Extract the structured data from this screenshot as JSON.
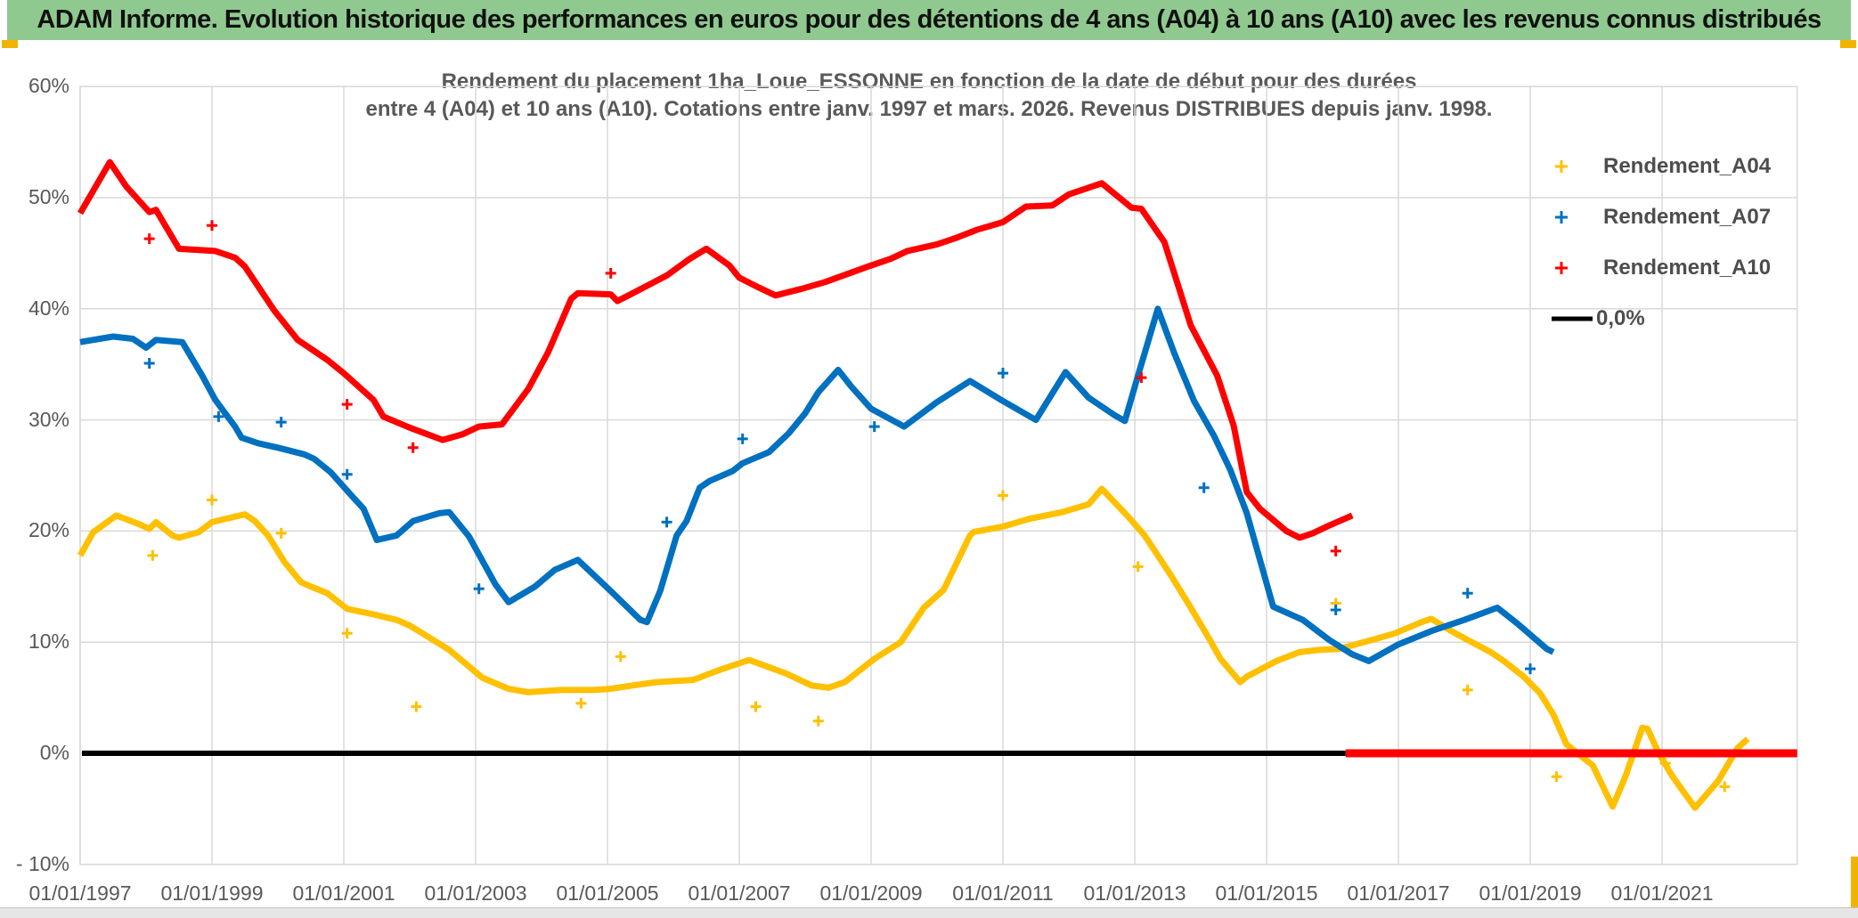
{
  "banner": {
    "title": "ADAM Informe. Evolution historique des performances en euros pour des détentions de 4 ans (A04) à 10 ans (A10) avec les revenus connus distribués"
  },
  "chart": {
    "title_line1": "Rendement du placement 1ha_Loue_ESSONNE en fonction de la date de début pour des durées",
    "title_line2": "entre 4 (A04) et 10 ans (A10). Cotations entre janv. 1997 et mars. 2026. Revenus DISTRIBUES depuis janv. 1998."
  },
  "colors": {
    "banner_green": "#8fc98f",
    "gold_accent": "#f0b400",
    "grid": "#d9d9d9",
    "axis_text": "#595959",
    "title_text": "#595959",
    "legend_text": "#4d4d4d",
    "series_a04": "#ffc000",
    "series_a07": "#0070c0",
    "series_a10": "#ff0000",
    "zero_line": "#000000"
  },
  "legend": {
    "items": [
      {
        "label": "Rendement_A04",
        "marker": "plus",
        "color": "#ffc000"
      },
      {
        "label": "Rendement_A07",
        "marker": "plus",
        "color": "#0070c0"
      },
      {
        "label": "Rendement_A10",
        "marker": "plus",
        "color": "#ff0000"
      },
      {
        "label": "0,0%",
        "marker": "line",
        "color": "#000000"
      }
    ]
  },
  "chart_data": {
    "type": "line",
    "x_unit": "decimal_year_start_date",
    "y_unit": "percent",
    "xlim": [
      1997.0,
      2023.05
    ],
    "ylim": [
      -10,
      60
    ],
    "grid": true,
    "legend_position": "right",
    "y_ticks": [
      {
        "label": "60%",
        "value": 60
      },
      {
        "label": "50%",
        "value": 50
      },
      {
        "label": "40%",
        "value": 40
      },
      {
        "label": "30%",
        "value": 30
      },
      {
        "label": "20%",
        "value": 20
      },
      {
        "label": "10%",
        "value": 10
      },
      {
        "label": "0%",
        "value": 0
      },
      {
        "label": "- 10%",
        "value": -10
      }
    ],
    "x_ticks": [
      {
        "label": "01/01/1997",
        "value": 1997
      },
      {
        "label": "01/01/1999",
        "value": 1999
      },
      {
        "label": "01/01/2001",
        "value": 2001
      },
      {
        "label": "01/01/2003",
        "value": 2003
      },
      {
        "label": "01/01/2005",
        "value": 2005
      },
      {
        "label": "01/01/2007",
        "value": 2007
      },
      {
        "label": "01/01/2009",
        "value": 2009
      },
      {
        "label": "01/01/2011",
        "value": 2011
      },
      {
        "label": "01/01/2013",
        "value": 2013
      },
      {
        "label": "01/01/2015",
        "value": 2015
      },
      {
        "label": "01/01/2017",
        "value": 2017
      },
      {
        "label": "01/01/2019",
        "value": 2019
      },
      {
        "label": "01/01/2021",
        "value": 2021
      }
    ],
    "zero_line": {
      "color": "#000000",
      "from": 1997.0,
      "to": 2016.2,
      "value": 0
    },
    "series": [
      {
        "name": "Rendement_A04",
        "color": "#ffc000",
        "width": 7,
        "points": [
          [
            1997.0,
            17.8
          ],
          [
            1997.2,
            19.9
          ],
          [
            1997.55,
            21.4
          ],
          [
            1997.9,
            20.6
          ],
          [
            1998.05,
            20.2
          ],
          [
            1998.15,
            20.8
          ],
          [
            1998.4,
            19.6
          ],
          [
            1998.5,
            19.4
          ],
          [
            1998.8,
            19.9
          ],
          [
            1999.0,
            20.8
          ],
          [
            1999.35,
            21.3
          ],
          [
            1999.5,
            21.5
          ],
          [
            1999.65,
            20.9
          ],
          [
            1999.85,
            19.6
          ],
          [
            2000.1,
            17.2
          ],
          [
            2000.35,
            15.4
          ],
          [
            2000.5,
            15.0
          ],
          [
            2000.75,
            14.4
          ],
          [
            2001.05,
            13.0
          ],
          [
            2001.45,
            12.5
          ],
          [
            2001.8,
            12.0
          ],
          [
            2002.0,
            11.5
          ],
          [
            2002.3,
            10.4
          ],
          [
            2002.6,
            9.3
          ],
          [
            2003.1,
            6.8
          ],
          [
            2003.5,
            5.8
          ],
          [
            2003.8,
            5.5
          ],
          [
            2004.3,
            5.7
          ],
          [
            2004.8,
            5.7
          ],
          [
            2005.05,
            5.8
          ],
          [
            2005.5,
            6.2
          ],
          [
            2005.75,
            6.4
          ],
          [
            2006.3,
            6.6
          ],
          [
            2006.7,
            7.5
          ],
          [
            2006.95,
            8.0
          ],
          [
            2007.15,
            8.4
          ],
          [
            2007.7,
            7.2
          ],
          [
            2008.1,
            6.1
          ],
          [
            2008.35,
            5.9
          ],
          [
            2008.6,
            6.4
          ],
          [
            2009.05,
            8.5
          ],
          [
            2009.45,
            10.0
          ],
          [
            2009.8,
            13.1
          ],
          [
            2010.1,
            14.7
          ],
          [
            2010.5,
            19.6
          ],
          [
            2010.55,
            19.9
          ],
          [
            2011.0,
            20.4
          ],
          [
            2011.4,
            21.1
          ],
          [
            2011.9,
            21.7
          ],
          [
            2012.3,
            22.4
          ],
          [
            2012.5,
            23.8
          ],
          [
            2012.9,
            21.3
          ],
          [
            2013.15,
            19.6
          ],
          [
            2013.55,
            16.0
          ],
          [
            2013.85,
            13.1
          ],
          [
            2014.15,
            10.1
          ],
          [
            2014.3,
            8.5
          ],
          [
            2014.6,
            6.4
          ],
          [
            2014.7,
            6.9
          ],
          [
            2015.15,
            8.3
          ],
          [
            2015.5,
            9.1
          ],
          [
            2015.8,
            9.3
          ],
          [
            2016.1,
            9.4
          ],
          [
            2016.6,
            10.2
          ],
          [
            2016.95,
            10.8
          ],
          [
            2017.35,
            11.8
          ],
          [
            2017.5,
            12.1
          ],
          [
            2017.8,
            11.0
          ],
          [
            2018.05,
            10.2
          ],
          [
            2018.4,
            9.1
          ],
          [
            2018.6,
            8.3
          ],
          [
            2018.9,
            6.9
          ],
          [
            2019.15,
            5.4
          ],
          [
            2019.35,
            3.5
          ],
          [
            2019.55,
            0.8
          ],
          [
            2019.95,
            -1.1
          ],
          [
            2020.25,
            -4.8
          ],
          [
            2020.45,
            -2.0
          ],
          [
            2020.7,
            2.3
          ],
          [
            2020.78,
            2.2
          ],
          [
            2020.95,
            0.0
          ],
          [
            2021.15,
            -2.0
          ],
          [
            2021.5,
            -4.9
          ],
          [
            2021.85,
            -2.5
          ],
          [
            2022.15,
            0.5
          ],
          [
            2022.3,
            1.3
          ]
        ],
        "outliers": [
          [
            1998.1,
            17.8
          ],
          [
            1999.0,
            22.8
          ],
          [
            2000.05,
            19.8
          ],
          [
            2001.05,
            10.8
          ],
          [
            2002.1,
            4.2
          ],
          [
            2004.6,
            4.5
          ],
          [
            2005.2,
            8.7
          ],
          [
            2007.25,
            4.2
          ],
          [
            2008.2,
            2.9
          ],
          [
            2011.0,
            23.2
          ],
          [
            2013.05,
            16.8
          ],
          [
            2016.05,
            13.5
          ],
          [
            2018.05,
            5.7
          ],
          [
            2019.4,
            -2.1
          ],
          [
            2021.05,
            -0.9
          ],
          [
            2021.95,
            -3.0
          ]
        ]
      },
      {
        "name": "Rendement_A07",
        "color": "#0070c0",
        "width": 7,
        "points": [
          [
            1997.0,
            37.0
          ],
          [
            1997.5,
            37.5
          ],
          [
            1997.8,
            37.3
          ],
          [
            1998.0,
            36.5
          ],
          [
            1998.15,
            37.2
          ],
          [
            1998.55,
            37.0
          ],
          [
            1998.85,
            34.0
          ],
          [
            1999.05,
            31.8
          ],
          [
            1999.35,
            29.4
          ],
          [
            1999.45,
            28.4
          ],
          [
            1999.7,
            27.9
          ],
          [
            2000.0,
            27.5
          ],
          [
            2000.4,
            26.9
          ],
          [
            2000.55,
            26.5
          ],
          [
            2000.8,
            25.3
          ],
          [
            2001.1,
            23.3
          ],
          [
            2001.3,
            22.0
          ],
          [
            2001.5,
            19.2
          ],
          [
            2001.8,
            19.6
          ],
          [
            2002.05,
            20.9
          ],
          [
            2002.45,
            21.6
          ],
          [
            2002.6,
            21.7
          ],
          [
            2002.9,
            19.5
          ],
          [
            2003.3,
            15.2
          ],
          [
            2003.5,
            13.6
          ],
          [
            2003.9,
            15.0
          ],
          [
            2004.2,
            16.5
          ],
          [
            2004.55,
            17.4
          ],
          [
            2005.05,
            14.6
          ],
          [
            2005.5,
            12.0
          ],
          [
            2005.6,
            11.8
          ],
          [
            2005.8,
            14.6
          ],
          [
            2006.05,
            19.6
          ],
          [
            2006.2,
            20.9
          ],
          [
            2006.4,
            23.9
          ],
          [
            2006.55,
            24.5
          ],
          [
            2006.9,
            25.4
          ],
          [
            2007.05,
            26.1
          ],
          [
            2007.45,
            27.1
          ],
          [
            2007.75,
            28.8
          ],
          [
            2008.0,
            30.6
          ],
          [
            2008.2,
            32.5
          ],
          [
            2008.5,
            34.5
          ],
          [
            2008.7,
            33.0
          ],
          [
            2009.0,
            31.0
          ],
          [
            2009.5,
            29.4
          ],
          [
            2010.0,
            31.6
          ],
          [
            2010.5,
            33.5
          ],
          [
            2011.0,
            31.7
          ],
          [
            2011.5,
            30.0
          ],
          [
            2011.95,
            34.3
          ],
          [
            2012.3,
            32.0
          ],
          [
            2012.7,
            30.4
          ],
          [
            2012.85,
            29.9
          ],
          [
            2013.05,
            34.0
          ],
          [
            2013.35,
            40.0
          ],
          [
            2013.6,
            36.0
          ],
          [
            2013.9,
            31.7
          ],
          [
            2014.2,
            28.6
          ],
          [
            2014.45,
            25.5
          ],
          [
            2014.7,
            21.6
          ],
          [
            2015.1,
            13.2
          ],
          [
            2015.55,
            12.0
          ],
          [
            2015.95,
            10.2
          ],
          [
            2016.3,
            8.9
          ],
          [
            2016.55,
            8.3
          ],
          [
            2017.0,
            9.8
          ],
          [
            2017.5,
            11.0
          ],
          [
            2018.0,
            12.0
          ],
          [
            2018.5,
            13.1
          ],
          [
            2018.8,
            11.7
          ],
          [
            2019.25,
            9.4
          ],
          [
            2019.35,
            9.1
          ]
        ],
        "outliers": [
          [
            1998.05,
            35.1
          ],
          [
            1999.1,
            30.3
          ],
          [
            2000.05,
            29.8
          ],
          [
            2001.05,
            25.1
          ],
          [
            2003.05,
            14.8
          ],
          [
            2005.9,
            20.8
          ],
          [
            2007.05,
            28.3
          ],
          [
            2009.05,
            29.4
          ],
          [
            2011.0,
            34.2
          ],
          [
            2014.05,
            23.9
          ],
          [
            2016.05,
            12.9
          ],
          [
            2018.05,
            14.4
          ],
          [
            2019.0,
            7.6
          ]
        ]
      },
      {
        "name": "Rendement_A10",
        "color": "#ff0000",
        "width": 7,
        "points": [
          [
            1997.0,
            48.6
          ],
          [
            1997.45,
            53.2
          ],
          [
            1997.7,
            51.0
          ],
          [
            1998.05,
            48.7
          ],
          [
            1998.15,
            48.9
          ],
          [
            1998.5,
            45.4
          ],
          [
            1999.05,
            45.2
          ],
          [
            1999.35,
            44.6
          ],
          [
            1999.5,
            43.8
          ],
          [
            1999.95,
            39.8
          ],
          [
            2000.3,
            37.2
          ],
          [
            2000.75,
            35.4
          ],
          [
            2001.0,
            34.2
          ],
          [
            2001.45,
            31.8
          ],
          [
            2001.6,
            30.3
          ],
          [
            2002.0,
            29.3
          ],
          [
            2002.5,
            28.2
          ],
          [
            2002.8,
            28.7
          ],
          [
            2003.05,
            29.4
          ],
          [
            2003.4,
            29.6
          ],
          [
            2003.8,
            32.8
          ],
          [
            2004.1,
            36.1
          ],
          [
            2004.45,
            40.9
          ],
          [
            2004.55,
            41.4
          ],
          [
            2005.05,
            41.3
          ],
          [
            2005.15,
            40.7
          ],
          [
            2005.35,
            41.3
          ],
          [
            2005.9,
            43.0
          ],
          [
            2006.25,
            44.5
          ],
          [
            2006.5,
            45.4
          ],
          [
            2006.85,
            43.9
          ],
          [
            2007.0,
            42.8
          ],
          [
            2007.3,
            41.9
          ],
          [
            2007.55,
            41.2
          ],
          [
            2007.95,
            41.8
          ],
          [
            2008.3,
            42.4
          ],
          [
            2008.95,
            43.8
          ],
          [
            2009.3,
            44.5
          ],
          [
            2009.55,
            45.2
          ],
          [
            2010.0,
            45.8
          ],
          [
            2010.3,
            46.4
          ],
          [
            2010.6,
            47.1
          ],
          [
            2011.0,
            47.8
          ],
          [
            2011.35,
            49.2
          ],
          [
            2011.75,
            49.3
          ],
          [
            2012.0,
            50.3
          ],
          [
            2012.5,
            51.3
          ],
          [
            2012.95,
            49.1
          ],
          [
            2013.1,
            49.0
          ],
          [
            2013.45,
            46.0
          ],
          [
            2013.85,
            38.5
          ],
          [
            2014.25,
            34.0
          ],
          [
            2014.5,
            29.5
          ],
          [
            2014.7,
            23.5
          ],
          [
            2014.9,
            22.0
          ],
          [
            2015.1,
            21.0
          ],
          [
            2015.3,
            20.0
          ],
          [
            2015.5,
            19.4
          ],
          [
            2015.7,
            19.8
          ],
          [
            2015.95,
            20.5
          ],
          [
            2016.3,
            21.4
          ]
        ],
        "outliers": [
          [
            1998.05,
            46.3
          ],
          [
            1999.0,
            47.5
          ],
          [
            2001.05,
            31.4
          ],
          [
            2002.05,
            27.5
          ],
          [
            2005.05,
            43.2
          ],
          [
            2013.1,
            33.8
          ],
          [
            2016.05,
            18.2
          ]
        ],
        "zero_segment": {
          "from": 2016.2,
          "to": 2023.05,
          "value": 0,
          "width": 9
        }
      }
    ]
  }
}
